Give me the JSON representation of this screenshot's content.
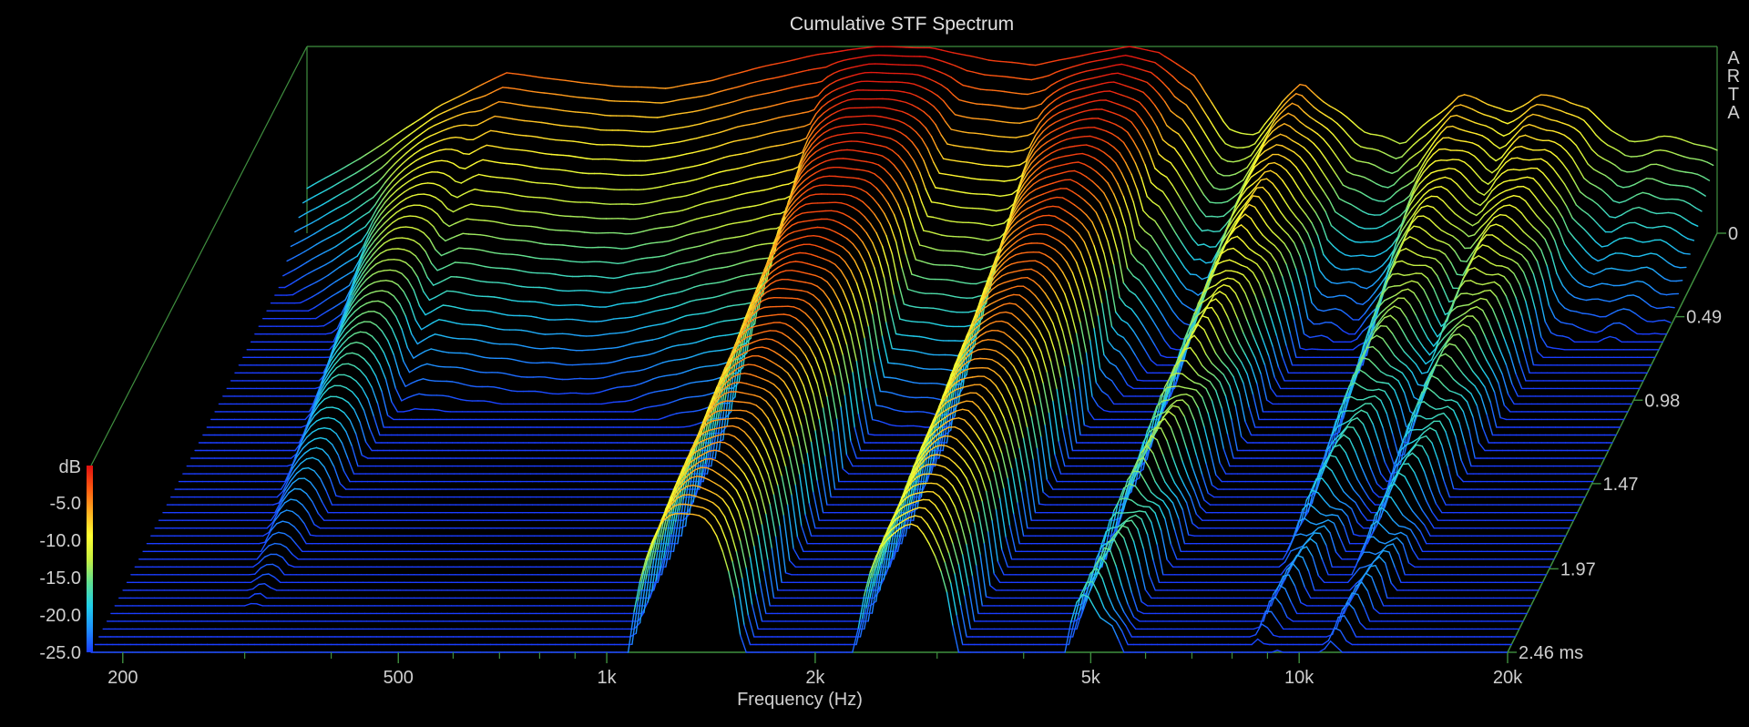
{
  "chart_data": {
    "type": "waterfall",
    "title": "Cumulative STF Spectrum",
    "xlabel": "Frequency (Hz)",
    "x_scale": "log",
    "xlim": [
      180,
      20000
    ],
    "x_ticks": [
      {
        "value": 200,
        "label": "200"
      },
      {
        "value": 500,
        "label": "500"
      },
      {
        "value": 1000,
        "label": "1k"
      },
      {
        "value": 2000,
        "label": "2k"
      },
      {
        "value": 5000,
        "label": "5k"
      },
      {
        "value": 10000,
        "label": "10k"
      },
      {
        "value": 20000,
        "label": "20k"
      }
    ],
    "time_axis": {
      "unit": "ms",
      "range": [
        0,
        2.46
      ],
      "ticks": [
        {
          "value": 0,
          "label": "0"
        },
        {
          "value": 0.49,
          "label": "0.49"
        },
        {
          "value": 0.98,
          "label": "0.98"
        },
        {
          "value": 1.47,
          "label": "1.47"
        },
        {
          "value": 1.97,
          "label": "1.97"
        },
        {
          "value": 2.46,
          "label": "2.46 ms"
        }
      ]
    },
    "z_axis": {
      "label": "dB",
      "range": [
        -25,
        0
      ],
      "ticks": [
        {
          "value": -5,
          "label": "-5.0"
        },
        {
          "value": -10,
          "label": "-10.0"
        },
        {
          "value": -15,
          "label": "-15.0"
        },
        {
          "value": -20,
          "label": "-20.0"
        },
        {
          "value": -25,
          "label": "-25.0"
        }
      ]
    },
    "colorscale": [
      "#1a3dff",
      "#1e90ff",
      "#20d0e8",
      "#60e090",
      "#c8f040",
      "#ffff30",
      "#ffb020",
      "#ff5a10",
      "#e01010"
    ],
    "slice_count": 55,
    "initial_spectrum_db": [
      {
        "f": 180,
        "db": -19
      },
      {
        "f": 215,
        "db": -15
      },
      {
        "f": 280,
        "db": -8
      },
      {
        "f": 350,
        "db": -3.5
      },
      {
        "f": 420,
        "db": -4.5
      },
      {
        "f": 500,
        "db": -5.3
      },
      {
        "f": 600,
        "db": -5.6
      },
      {
        "f": 700,
        "db": -4.5
      },
      {
        "f": 800,
        "db": -3
      },
      {
        "f": 1000,
        "db": -1
      },
      {
        "f": 1200,
        "db": 0
      },
      {
        "f": 1450,
        "db": -0.2
      },
      {
        "f": 1750,
        "db": -1.8
      },
      {
        "f": 2050,
        "db": -2.5
      },
      {
        "f": 2400,
        "db": -1.2
      },
      {
        "f": 2800,
        "db": 0
      },
      {
        "f": 3100,
        "db": -0.8
      },
      {
        "f": 3500,
        "db": -4
      },
      {
        "f": 3900,
        "db": -11
      },
      {
        "f": 4300,
        "db": -12
      },
      {
        "f": 4700,
        "db": -7
      },
      {
        "f": 5000,
        "db": -5
      },
      {
        "f": 5500,
        "db": -8
      },
      {
        "f": 6200,
        "db": -11.5
      },
      {
        "f": 7000,
        "db": -13
      },
      {
        "f": 8000,
        "db": -8.5
      },
      {
        "f": 8500,
        "db": -6.5
      },
      {
        "f": 9000,
        "db": -7
      },
      {
        "f": 9500,
        "db": -8
      },
      {
        "f": 10000,
        "db": -9
      },
      {
        "f": 11000,
        "db": -6.5
      },
      {
        "f": 12000,
        "db": -7
      },
      {
        "f": 13000,
        "db": -8.5
      },
      {
        "f": 14000,
        "db": -11
      },
      {
        "f": 15000,
        "db": -13
      },
      {
        "f": 16500,
        "db": -12
      },
      {
        "f": 18000,
        "db": -12.5
      },
      {
        "f": 20000,
        "db": -14
      }
    ],
    "resonances": [
      {
        "f": 280,
        "decay_ms": 0.9
      },
      {
        "f": 1300,
        "decay_ms": 2.8
      },
      {
        "f": 2700,
        "decay_ms": 2.2
      },
      {
        "f": 5000,
        "decay_ms": 1.4
      },
      {
        "f": 9000,
        "decay_ms": 1.0
      },
      {
        "f": 11500,
        "decay_ms": 1.0
      }
    ]
  },
  "side_label": [
    "A",
    "R",
    "T",
    "A"
  ]
}
